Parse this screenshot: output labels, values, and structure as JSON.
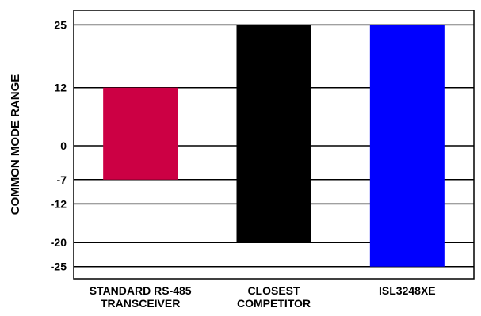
{
  "chart_data": {
    "type": "bar",
    "style": "floating-range",
    "ylabel": "COMMON MODE RANGE",
    "xlabel": "",
    "title": "",
    "ylim": [
      -27.5,
      28
    ],
    "yticks": [
      25,
      12,
      0,
      -7,
      -12,
      -20,
      -25
    ],
    "grid": "horizontal",
    "legend": "none",
    "categories": [
      [
        "STANDARD RS-485",
        "TRANSCEIVER"
      ],
      [
        "CLOSEST",
        "COMPETITOR"
      ],
      [
        "ISL3248XE"
      ]
    ],
    "ranges": [
      {
        "low": -7,
        "high": 12,
        "color": "#cc0044"
      },
      {
        "low": -20,
        "high": 25,
        "color": "#000000"
      },
      {
        "low": -25,
        "high": 25,
        "color": "#0000ff"
      }
    ]
  }
}
